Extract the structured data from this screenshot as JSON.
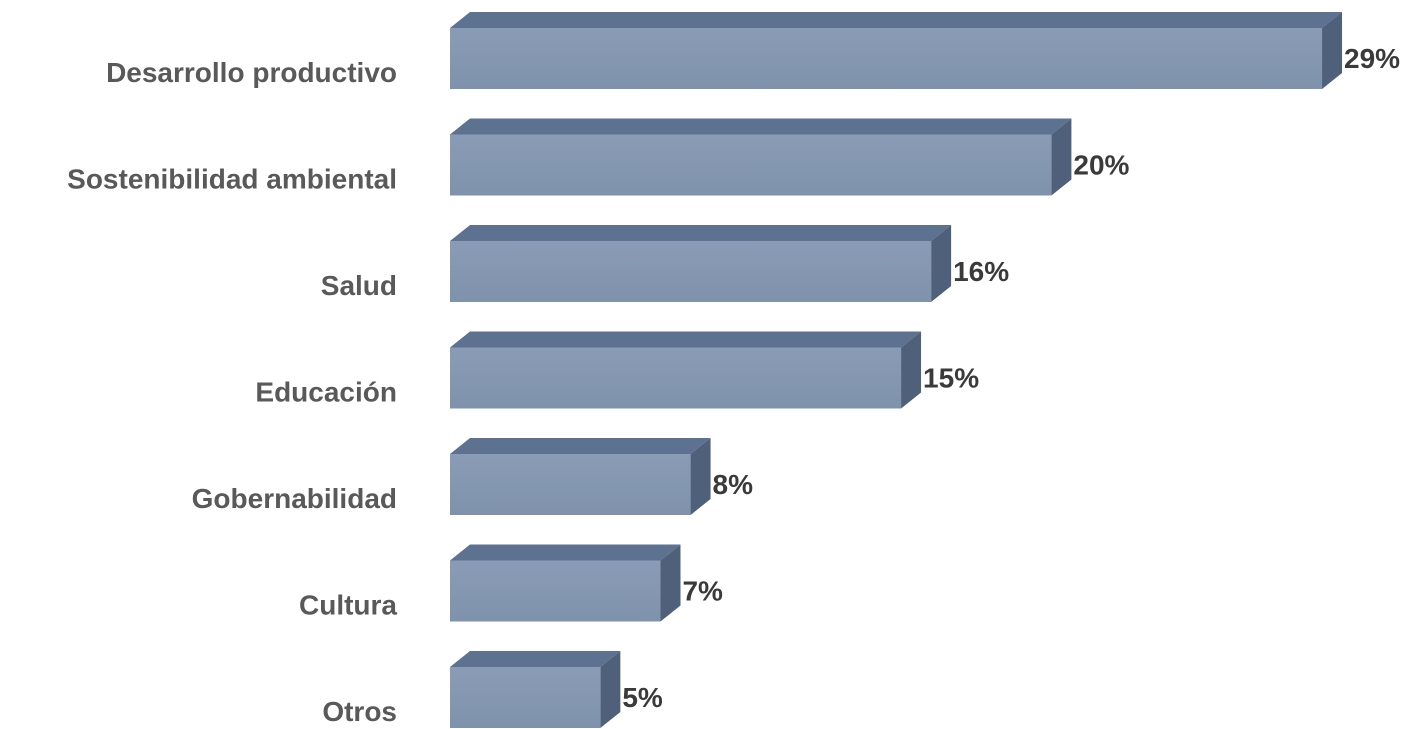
{
  "chart_data": {
    "type": "bar",
    "orientation": "horizontal",
    "categories": [
      "Desarrollo productivo",
      "Sostenibilidad ambiental",
      "Salud",
      "Educación",
      "Gobernabilidad",
      "Cultura",
      "Otros"
    ],
    "values": [
      29,
      20,
      16,
      15,
      8,
      7,
      5
    ],
    "value_labels": [
      "29%",
      "20%",
      "16%",
      "15%",
      "8%",
      "7%",
      "5%"
    ],
    "color": "#8497b0"
  }
}
